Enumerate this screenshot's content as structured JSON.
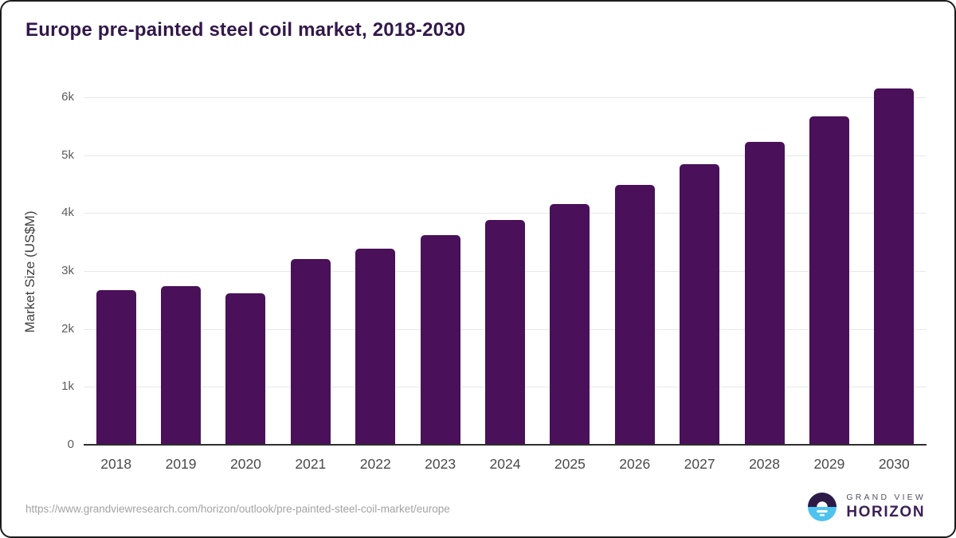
{
  "header": {
    "title": "Europe pre-painted steel coil market, 2018-2030"
  },
  "chart_data": {
    "type": "bar",
    "title": "Europe pre-painted steel coil market, 2018-2030",
    "categories": [
      "2018",
      "2019",
      "2020",
      "2021",
      "2022",
      "2023",
      "2024",
      "2025",
      "2026",
      "2027",
      "2028",
      "2029",
      "2030"
    ],
    "values": [
      2665,
      2735,
      2615,
      3205,
      3385,
      3615,
      3885,
      4160,
      4480,
      4845,
      5230,
      5665,
      6150
    ],
    "xlabel": "",
    "ylabel": "Market Size (US$M)",
    "ylim": [
      0,
      6000
    ],
    "ytick_interval": 1000,
    "yticks": [
      "0",
      "1k",
      "2k",
      "3k",
      "4k",
      "5k",
      "6k"
    ],
    "grid": true,
    "legend": "none",
    "bar_color": "#4a1059"
  },
  "footer": {
    "source_url": "https://www.grandviewresearch.com/horizon/outlook/pre-painted-steel-coil-market/europe",
    "logo": {
      "line1": "GRAND VIEW",
      "line2": "HORIZON",
      "mark_top_color": "#2e1a47",
      "mark_bottom_color": "#4fc3f0"
    }
  }
}
